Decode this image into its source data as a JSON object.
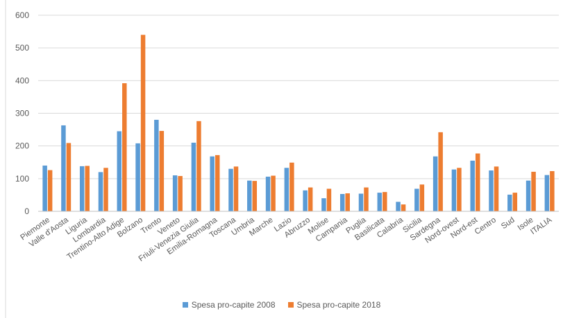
{
  "chart_data": {
    "type": "bar",
    "title": "",
    "xlabel": "",
    "ylabel": "",
    "ylim": [
      0,
      600
    ],
    "yticks": [
      0,
      100,
      200,
      300,
      400,
      500,
      600
    ],
    "grid": true,
    "legend_position": "bottom",
    "categories": [
      "Piemonte",
      "Valle d'Aosta",
      "Liguria",
      "Lombardia",
      "Trentino-Alto Adige",
      "Bolzano",
      "Trento",
      "Veneto",
      "Friuli-Venezia Giulia",
      "Emilia-Romagna",
      "Toscana",
      "Umbria",
      "Marche",
      "Lazio",
      "Abruzzo",
      "Molise",
      "Campania",
      "Puglia",
      "Basilicata",
      "Calabria",
      "Sicilia",
      "Sardegna",
      "Nord-ovest",
      "Nord-est",
      "Centro",
      "Sud",
      "Isole",
      "ITALIA"
    ],
    "series": [
      {
        "name": "Spesa pro-capite 2008",
        "color": "#5b9bd5",
        "values": [
          140,
          263,
          138,
          120,
          245,
          208,
          280,
          110,
          210,
          168,
          130,
          94,
          106,
          133,
          64,
          40,
          53,
          54,
          57,
          29,
          69,
          168,
          128,
          155,
          125,
          51,
          94,
          111
        ]
      },
      {
        "name": "Spesa pro-capite 2018",
        "color": "#ed7d31",
        "values": [
          126,
          209,
          139,
          133,
          392,
          540,
          246,
          108,
          276,
          172,
          137,
          93,
          109,
          149,
          73,
          69,
          55,
          73,
          59,
          21,
          82,
          242,
          133,
          177,
          137,
          57,
          121,
          123
        ]
      }
    ]
  }
}
